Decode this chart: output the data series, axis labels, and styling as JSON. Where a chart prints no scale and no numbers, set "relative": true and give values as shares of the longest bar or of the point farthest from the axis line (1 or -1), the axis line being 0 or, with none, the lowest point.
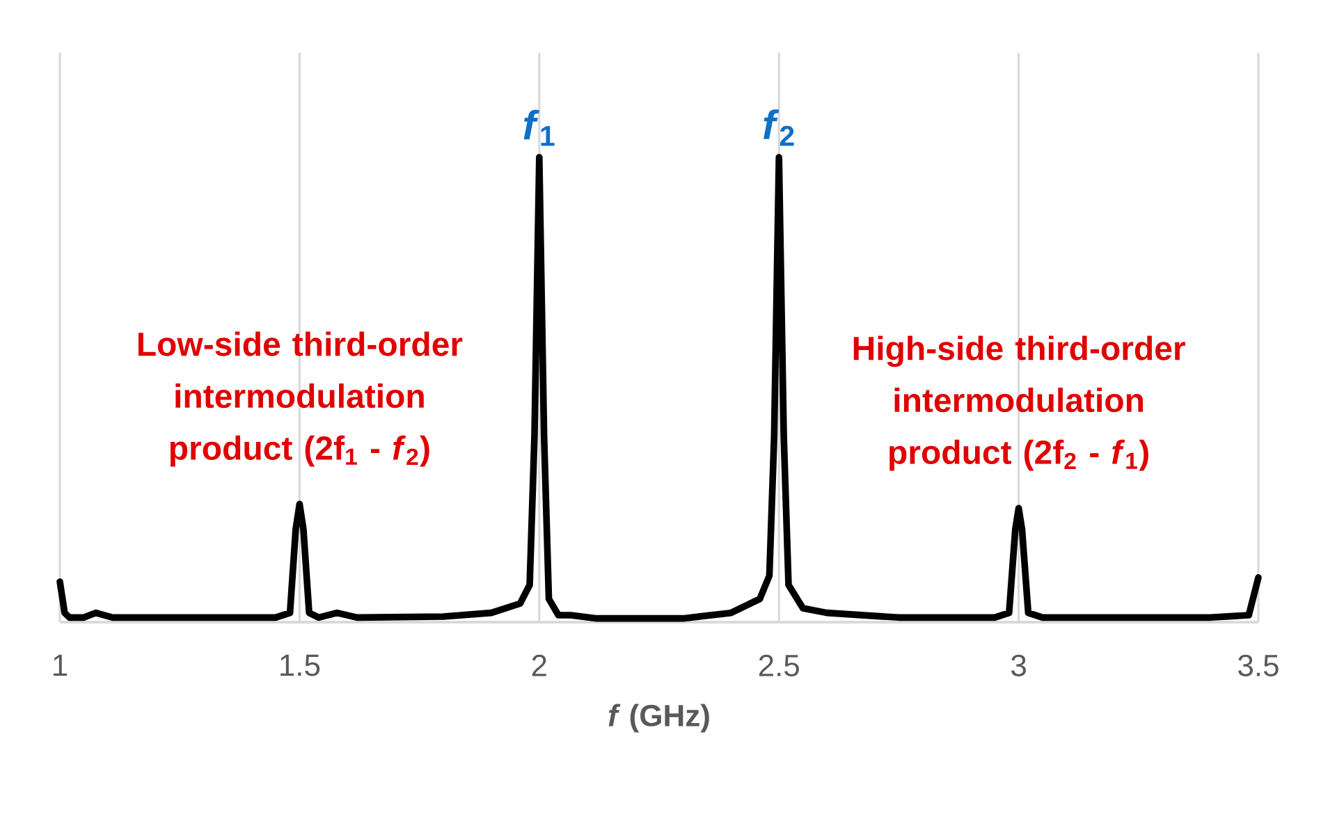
{
  "chart_data": {
    "type": "line",
    "relative": true,
    "xlabel": "*f* (GHz)",
    "xlim": [
      1,
      3.5
    ],
    "xticks": [
      1,
      1.5,
      2,
      2.5,
      3,
      3.5
    ],
    "grid": "x",
    "series": [
      {
        "color": "#000000",
        "x": [
          1.0,
          1.01,
          1.02,
          1.05,
          1.075,
          1.11,
          1.15,
          1.3,
          1.45,
          1.48,
          1.492,
          1.5,
          1.508,
          1.52,
          1.54,
          1.578,
          1.62,
          1.8,
          1.9,
          1.96,
          1.98,
          1.99,
          2.0,
          2.01,
          2.02,
          2.04,
          2.066,
          2.12,
          2.3,
          2.4,
          2.46,
          2.48,
          2.49,
          2.5,
          2.51,
          2.52,
          2.55,
          2.6,
          2.75,
          2.95,
          2.98,
          2.993,
          3.0,
          3.007,
          3.02,
          3.05,
          3.4,
          3.48,
          3.5
        ],
        "values": [
          0.087,
          0.02,
          0.01,
          0.01,
          0.02,
          0.01,
          0.01,
          0.01,
          0.01,
          0.02,
          0.2,
          0.254,
          0.2,
          0.02,
          0.01,
          0.02,
          0.01,
          0.012,
          0.02,
          0.04,
          0.08,
          0.4,
          1,
          0.4,
          0.05,
          0.015,
          0.015,
          0.008,
          0.008,
          0.02,
          0.05,
          0.1,
          0.4,
          1,
          0.4,
          0.08,
          0.03,
          0.02,
          0.01,
          0.01,
          0.02,
          0.2,
          0.245,
          0.2,
          0.02,
          0.01,
          0.01,
          0.015,
          0.096
        ]
      }
    ],
    "annotations": [
      {
        "text": "*f*$_{1}$",
        "x": 2,
        "y": 1
      },
      {
        "text": "*f*$_{2}$",
        "x": 2.5,
        "y": 1
      },
      {
        "text": "Low-side third-order intermodulation product (2f$_{1}$ - *f*$_{2}$)",
        "x": 1.5,
        "y": 0.254
      },
      {
        "text": "High-side third-order intermodulation product (2f$_{2}$ - *f*$_{1}$)",
        "x": 3,
        "y": 0.245
      }
    ]
  }
}
